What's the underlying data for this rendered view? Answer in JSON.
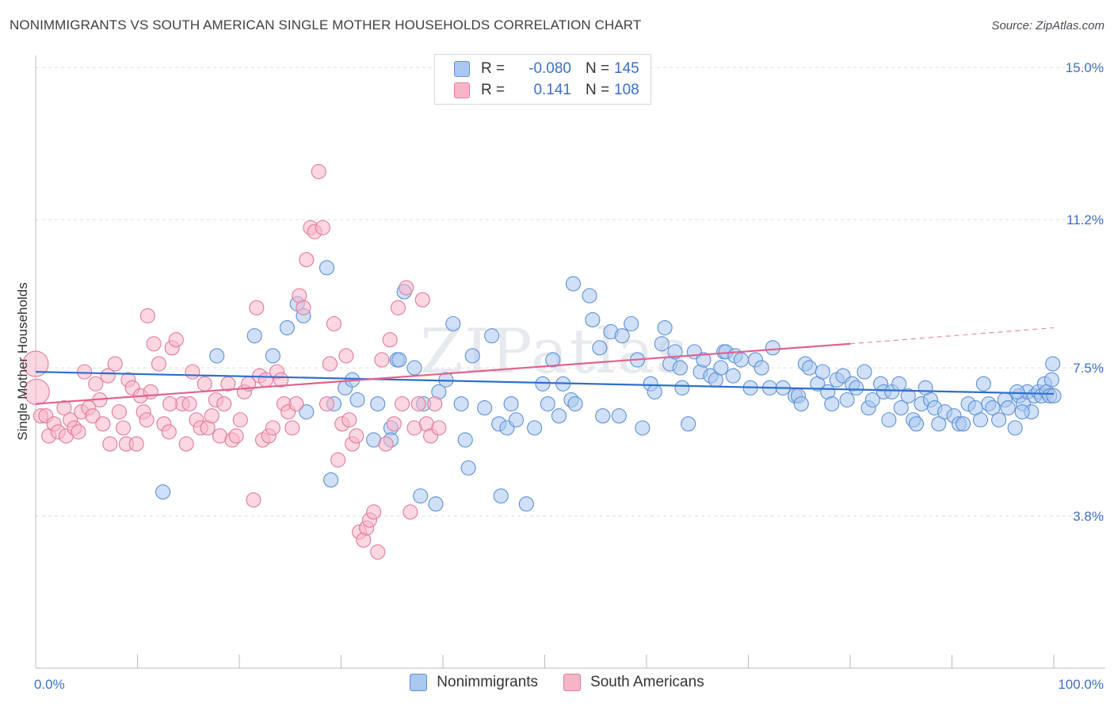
{
  "title": "NONIMMIGRANTS VS SOUTH AMERICAN SINGLE MOTHER HOUSEHOLDS CORRELATION CHART",
  "source": "Source: ZipAtlas.com",
  "watermark": "ZIPatlas",
  "legend": {
    "rows": [
      {
        "r_label": "R =",
        "r_value": "-0.080",
        "n_label": "N =",
        "n_value": "145",
        "color": "#a9c8f0",
        "edge": "#5d8fd6"
      },
      {
        "r_label": "R =",
        "r_value": "0.141",
        "n_label": "N =",
        "n_value": "108",
        "color": "#f7b6c8",
        "edge": "#e07a9a"
      }
    ],
    "bottom": [
      {
        "label": "Nonimmigrants",
        "color": "#a9c8f0",
        "edge": "#5d8fd6"
      },
      {
        "label": "South Americans",
        "color": "#f7b6c8",
        "edge": "#e07a9a"
      }
    ]
  },
  "chart_data": {
    "type": "scatter",
    "ylabel": "Single Mother Households",
    "xlabel": "",
    "x_tick_labels": [
      "0.0%",
      "100.0%"
    ],
    "y_tick_labels": [
      "15.0%",
      "11.2%",
      "7.5%",
      "3.8%"
    ],
    "y_ticks": [
      15.0,
      11.2,
      7.5,
      3.8
    ],
    "xlim": [
      0,
      100
    ],
    "ylim": [
      0,
      15.3
    ],
    "grid": "horizontal dashed",
    "series": [
      {
        "name": "Nonimmigrants",
        "color": "#5d8fd6",
        "fill": "#a9c8f0",
        "trend": {
          "x0": 0,
          "y0": 7.4,
          "x1": 100,
          "y1": 6.85,
          "style": "solid"
        },
        "points": [
          [
            12.5,
            4.4
          ],
          [
            17.8,
            7.8
          ],
          [
            21.5,
            8.3
          ],
          [
            23.3,
            7.8
          ],
          [
            24.7,
            8.5
          ],
          [
            25.7,
            9.1
          ],
          [
            26.3,
            8.8
          ],
          [
            26.6,
            6.4
          ],
          [
            28.6,
            10.0
          ],
          [
            29.0,
            4.7
          ],
          [
            29.3,
            6.6
          ],
          [
            30.4,
            7.0
          ],
          [
            31.1,
            7.2
          ],
          [
            31.6,
            6.7
          ],
          [
            33.2,
            5.7
          ],
          [
            33.6,
            6.6
          ],
          [
            34.9,
            6.0
          ],
          [
            34.9,
            5.7
          ],
          [
            35.5,
            7.7
          ],
          [
            35.7,
            7.7
          ],
          [
            36.2,
            9.4
          ],
          [
            37.2,
            7.5
          ],
          [
            37.8,
            4.3
          ],
          [
            38.1,
            6.6
          ],
          [
            39.3,
            4.1
          ],
          [
            39.6,
            6.9
          ],
          [
            40.3,
            7.2
          ],
          [
            41.0,
            8.6
          ],
          [
            41.8,
            6.6
          ],
          [
            42.2,
            5.7
          ],
          [
            42.5,
            5.0
          ],
          [
            42.9,
            7.8
          ],
          [
            44.1,
            6.5
          ],
          [
            44.8,
            8.3
          ],
          [
            45.5,
            6.1
          ],
          [
            45.7,
            4.3
          ],
          [
            46.3,
            6.0
          ],
          [
            46.7,
            6.6
          ],
          [
            47.2,
            6.2
          ],
          [
            48.2,
            4.1
          ],
          [
            49.0,
            6.0
          ],
          [
            49.8,
            7.1
          ],
          [
            50.3,
            6.6
          ],
          [
            50.8,
            7.7
          ],
          [
            51.4,
            6.3
          ],
          [
            51.8,
            7.1
          ],
          [
            52.6,
            6.7
          ],
          [
            53.0,
            6.6
          ],
          [
            52.8,
            9.6
          ],
          [
            54.4,
            9.3
          ],
          [
            54.7,
            8.7
          ],
          [
            55.4,
            8.0
          ],
          [
            55.7,
            6.3
          ],
          [
            56.5,
            8.4
          ],
          [
            57.6,
            8.3
          ],
          [
            57.3,
            6.3
          ],
          [
            58.5,
            8.6
          ],
          [
            59.1,
            7.7
          ],
          [
            59.6,
            6.0
          ],
          [
            60.4,
            7.1
          ],
          [
            60.8,
            6.9
          ],
          [
            61.5,
            8.1
          ],
          [
            61.8,
            8.5
          ],
          [
            62.3,
            7.6
          ],
          [
            62.8,
            7.9
          ],
          [
            63.3,
            7.5
          ],
          [
            63.5,
            7.0
          ],
          [
            64.1,
            6.1
          ],
          [
            64.7,
            7.9
          ],
          [
            65.3,
            7.4
          ],
          [
            65.6,
            7.7
          ],
          [
            66.3,
            7.3
          ],
          [
            66.8,
            7.2
          ],
          [
            67.3,
            7.5
          ],
          [
            67.6,
            7.9
          ],
          [
            67.8,
            7.9
          ],
          [
            68.5,
            7.3
          ],
          [
            68.7,
            7.8
          ],
          [
            69.3,
            7.7
          ],
          [
            70.2,
            7.0
          ],
          [
            70.7,
            7.7
          ],
          [
            71.3,
            7.5
          ],
          [
            72.1,
            7.0
          ],
          [
            72.4,
            8.0
          ],
          [
            73.4,
            7.0
          ],
          [
            74.6,
            6.8
          ],
          [
            74.9,
            6.8
          ],
          [
            75.2,
            6.6
          ],
          [
            75.6,
            7.6
          ],
          [
            76.0,
            7.5
          ],
          [
            76.8,
            7.1
          ],
          [
            77.3,
            7.4
          ],
          [
            77.8,
            6.9
          ],
          [
            78.2,
            6.6
          ],
          [
            78.7,
            7.2
          ],
          [
            79.3,
            7.3
          ],
          [
            79.7,
            6.7
          ],
          [
            80.2,
            7.1
          ],
          [
            80.6,
            7.0
          ],
          [
            81.4,
            7.4
          ],
          [
            81.8,
            6.5
          ],
          [
            82.2,
            6.7
          ],
          [
            83.0,
            7.1
          ],
          [
            83.3,
            6.9
          ],
          [
            83.8,
            6.2
          ],
          [
            84.1,
            6.9
          ],
          [
            84.8,
            7.1
          ],
          [
            85.0,
            6.5
          ],
          [
            85.7,
            6.8
          ],
          [
            86.2,
            6.2
          ],
          [
            86.5,
            6.1
          ],
          [
            87.0,
            6.6
          ],
          [
            87.4,
            7.0
          ],
          [
            87.9,
            6.7
          ],
          [
            88.3,
            6.5
          ],
          [
            88.7,
            6.1
          ],
          [
            89.3,
            6.4
          ],
          [
            90.2,
            6.3
          ],
          [
            90.7,
            6.1
          ],
          [
            91.1,
            6.1
          ],
          [
            91.6,
            6.6
          ],
          [
            92.3,
            6.5
          ],
          [
            92.8,
            6.2
          ],
          [
            93.1,
            7.1
          ],
          [
            93.6,
            6.6
          ],
          [
            94.0,
            6.5
          ],
          [
            94.6,
            6.2
          ],
          [
            95.2,
            6.7
          ],
          [
            95.5,
            6.5
          ],
          [
            96.2,
            6.0
          ],
          [
            96.6,
            6.8
          ],
          [
            97.0,
            6.6
          ],
          [
            97.4,
            6.9
          ],
          [
            97.8,
            6.4
          ],
          [
            98.1,
            6.8
          ],
          [
            98.5,
            6.9
          ],
          [
            98.8,
            6.8
          ],
          [
            99.1,
            7.1
          ],
          [
            99.3,
            6.9
          ],
          [
            99.6,
            6.8
          ],
          [
            99.8,
            7.2
          ],
          [
            100.0,
            6.8
          ],
          [
            99.9,
            7.6
          ],
          [
            96.9,
            6.4
          ],
          [
            96.4,
            6.9
          ]
        ]
      },
      {
        "name": "South Americans",
        "color": "#e07a9a",
        "fill": "#f7b6c8",
        "trend": {
          "x0": 0,
          "y0": 6.6,
          "x1": 80,
          "y1": 8.1,
          "style": "solid",
          "dash_to": {
            "x": 100,
            "y": 8.5
          }
        },
        "points": [
          [
            0.0,
            7.6
          ],
          [
            0.1,
            6.9
          ],
          [
            0.5,
            6.3
          ],
          [
            1.0,
            6.3
          ],
          [
            1.3,
            5.8
          ],
          [
            1.8,
            6.1
          ],
          [
            2.2,
            5.9
          ],
          [
            2.8,
            6.5
          ],
          [
            3.0,
            5.8
          ],
          [
            3.4,
            6.2
          ],
          [
            3.8,
            6.0
          ],
          [
            4.2,
            5.9
          ],
          [
            4.5,
            6.4
          ],
          [
            4.8,
            7.4
          ],
          [
            5.2,
            6.5
          ],
          [
            5.6,
            6.3
          ],
          [
            5.9,
            7.1
          ],
          [
            6.3,
            6.7
          ],
          [
            6.6,
            6.1
          ],
          [
            7.1,
            7.3
          ],
          [
            7.3,
            5.6
          ],
          [
            7.8,
            7.6
          ],
          [
            8.2,
            6.4
          ],
          [
            8.6,
            6.0
          ],
          [
            8.9,
            5.6
          ],
          [
            9.1,
            7.2
          ],
          [
            9.5,
            7.0
          ],
          [
            9.9,
            5.6
          ],
          [
            10.3,
            6.8
          ],
          [
            10.6,
            6.4
          ],
          [
            10.9,
            6.2
          ],
          [
            11.3,
            6.9
          ],
          [
            11.6,
            8.1
          ],
          [
            11.0,
            8.8
          ],
          [
            12.1,
            7.6
          ],
          [
            12.6,
            6.1
          ],
          [
            13.1,
            5.9
          ],
          [
            13.4,
            8.0
          ],
          [
            13.8,
            8.2
          ],
          [
            14.4,
            6.6
          ],
          [
            14.8,
            5.6
          ],
          [
            13.2,
            6.6
          ],
          [
            15.1,
            6.6
          ],
          [
            15.4,
            7.4
          ],
          [
            15.8,
            6.2
          ],
          [
            16.2,
            6.0
          ],
          [
            16.6,
            7.1
          ],
          [
            16.9,
            6.0
          ],
          [
            17.3,
            6.3
          ],
          [
            17.7,
            6.7
          ],
          [
            18.1,
            5.8
          ],
          [
            18.5,
            6.6
          ],
          [
            18.9,
            7.1
          ],
          [
            19.3,
            5.7
          ],
          [
            19.7,
            5.8
          ],
          [
            20.1,
            6.2
          ],
          [
            20.5,
            6.9
          ],
          [
            20.9,
            7.1
          ],
          [
            21.4,
            4.2
          ],
          [
            21.7,
            9.0
          ],
          [
            22.0,
            7.3
          ],
          [
            22.3,
            5.7
          ],
          [
            22.6,
            7.2
          ],
          [
            22.9,
            5.8
          ],
          [
            23.3,
            6.0
          ],
          [
            23.7,
            7.4
          ],
          [
            24.1,
            7.2
          ],
          [
            24.4,
            6.6
          ],
          [
            24.8,
            6.4
          ],
          [
            25.2,
            6.0
          ],
          [
            25.6,
            6.6
          ],
          [
            25.9,
            9.3
          ],
          [
            26.3,
            9.0
          ],
          [
            26.6,
            10.2
          ],
          [
            27.0,
            11.0
          ],
          [
            27.4,
            10.9
          ],
          [
            27.8,
            12.4
          ],
          [
            28.2,
            11.0
          ],
          [
            28.6,
            6.6
          ],
          [
            28.9,
            7.6
          ],
          [
            29.3,
            8.6
          ],
          [
            29.7,
            5.2
          ],
          [
            30.1,
            6.1
          ],
          [
            30.5,
            7.8
          ],
          [
            30.8,
            6.2
          ],
          [
            31.1,
            5.6
          ],
          [
            31.5,
            5.8
          ],
          [
            31.8,
            3.4
          ],
          [
            32.2,
            3.2
          ],
          [
            32.5,
            3.5
          ],
          [
            32.8,
            3.7
          ],
          [
            33.2,
            3.9
          ],
          [
            33.6,
            2.9
          ],
          [
            34.0,
            7.7
          ],
          [
            34.4,
            5.6
          ],
          [
            34.8,
            8.2
          ],
          [
            35.2,
            6.1
          ],
          [
            35.6,
            9.0
          ],
          [
            36.0,
            6.6
          ],
          [
            36.4,
            9.5
          ],
          [
            36.8,
            3.9
          ],
          [
            37.2,
            6.0
          ],
          [
            37.6,
            6.6
          ],
          [
            38.0,
            9.2
          ],
          [
            38.4,
            6.1
          ],
          [
            38.8,
            5.8
          ],
          [
            39.2,
            6.6
          ],
          [
            39.6,
            6.0
          ]
        ]
      }
    ]
  }
}
